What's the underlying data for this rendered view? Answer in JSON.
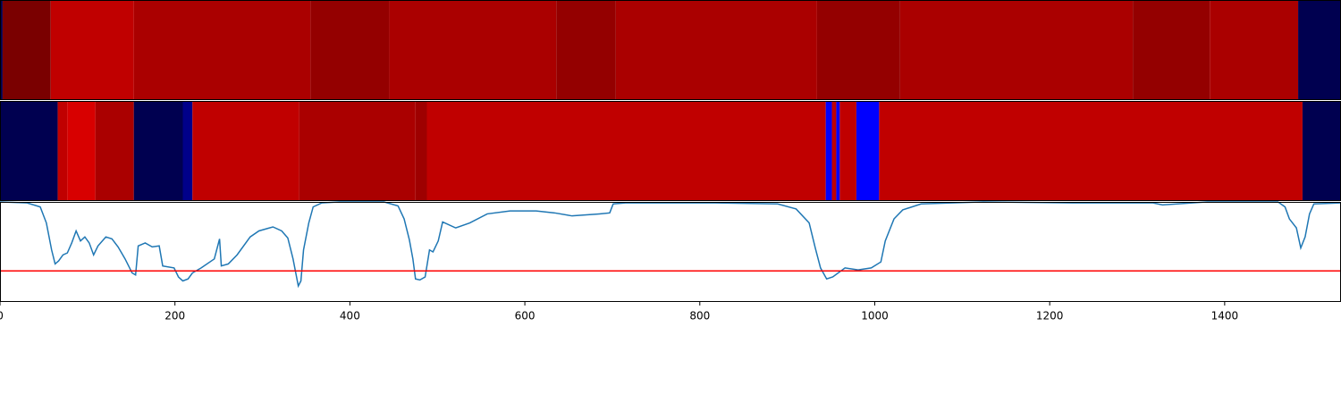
{
  "chart_data": {
    "type": "line",
    "xlim": [
      0,
      1533
    ],
    "ylim": [
      0,
      1
    ],
    "xticks": [
      0,
      200,
      400,
      600,
      800,
      1000,
      1200,
      1400
    ],
    "strips": [
      {
        "segments": [
          {
            "start": 0,
            "end": 3,
            "color": "#000050"
          },
          {
            "start": 3,
            "end": 58,
            "color": "#7a0000"
          },
          {
            "start": 58,
            "end": 153,
            "color": "#c00000"
          },
          {
            "start": 153,
            "end": 355,
            "color": "#aa0000"
          },
          {
            "start": 355,
            "end": 445,
            "color": "#940000"
          },
          {
            "start": 445,
            "end": 636,
            "color": "#aa0000"
          },
          {
            "start": 636,
            "end": 704,
            "color": "#940000"
          },
          {
            "start": 704,
            "end": 934,
            "color": "#aa0000"
          },
          {
            "start": 934,
            "end": 1029,
            "color": "#940000"
          },
          {
            "start": 1029,
            "end": 1295,
            "color": "#aa0000"
          },
          {
            "start": 1295,
            "end": 1383,
            "color": "#940000"
          },
          {
            "start": 1383,
            "end": 1484,
            "color": "#aa0000"
          },
          {
            "start": 1484,
            "end": 1533,
            "color": "#000050"
          }
        ]
      },
      {
        "segments": [
          {
            "start": 0,
            "end": 66,
            "color": "#000050"
          },
          {
            "start": 66,
            "end": 77,
            "color": "#c00000"
          },
          {
            "start": 77,
            "end": 109,
            "color": "#d80000"
          },
          {
            "start": 109,
            "end": 153,
            "color": "#aa0000"
          },
          {
            "start": 153,
            "end": 209,
            "color": "#000050"
          },
          {
            "start": 209,
            "end": 220,
            "color": "#00008a"
          },
          {
            "start": 220,
            "end": 342,
            "color": "#c00000"
          },
          {
            "start": 342,
            "end": 475,
            "color": "#aa0000"
          },
          {
            "start": 475,
            "end": 488,
            "color": "#9e0000"
          },
          {
            "start": 488,
            "end": 944,
            "color": "#c00000"
          },
          {
            "start": 944,
            "end": 951,
            "color": "#0000ff"
          },
          {
            "start": 951,
            "end": 956,
            "color": "#c00000"
          },
          {
            "start": 956,
            "end": 960,
            "color": "#0000ff"
          },
          {
            "start": 960,
            "end": 979,
            "color": "#c00000"
          },
          {
            "start": 979,
            "end": 1005,
            "color": "#0000ff"
          },
          {
            "start": 1005,
            "end": 1489,
            "color": "#c00000"
          },
          {
            "start": 1489,
            "end": 1533,
            "color": "#000050"
          }
        ]
      }
    ],
    "x": [
      0,
      31,
      46,
      53,
      59,
      63,
      67,
      72,
      77,
      82,
      87,
      92,
      97,
      102,
      107,
      112,
      121,
      128,
      135,
      143,
      151,
      155,
      158,
      166,
      174,
      182,
      186,
      199,
      204,
      209,
      215,
      220,
      230,
      245,
      251,
      253,
      261,
      271,
      286,
      296,
      312,
      322,
      329,
      335,
      339,
      341,
      344,
      347,
      353,
      358,
      368,
      388,
      439,
      455,
      462,
      468,
      472,
      475,
      480,
      486,
      491,
      495,
      501,
      506,
      521,
      537,
      557,
      583,
      613,
      634,
      654,
      685,
      697,
      701,
      715,
      818,
      889,
      910,
      925,
      932,
      938,
      945,
      952,
      966,
      981,
      996,
      1007,
      1012,
      1022,
      1032,
      1053,
      1124,
      1226,
      1318,
      1329,
      1380,
      1461,
      1469,
      1474,
      1482,
      1487,
      1492,
      1497,
      1502,
      1533
    ],
    "series": [
      {
        "color": "#1f77b4",
        "values": [
          1.0,
          0.99,
          0.95,
          0.79,
          0.52,
          0.38,
          0.41,
          0.47,
          0.49,
          0.59,
          0.71,
          0.61,
          0.65,
          0.59,
          0.47,
          0.56,
          0.65,
          0.63,
          0.55,
          0.43,
          0.29,
          0.27,
          0.56,
          0.59,
          0.55,
          0.56,
          0.36,
          0.34,
          0.25,
          0.21,
          0.23,
          0.29,
          0.34,
          0.43,
          0.63,
          0.36,
          0.38,
          0.47,
          0.65,
          0.71,
          0.75,
          0.71,
          0.64,
          0.43,
          0.25,
          0.16,
          0.21,
          0.52,
          0.79,
          0.95,
          0.99,
          1.0,
          1.0,
          0.96,
          0.83,
          0.62,
          0.43,
          0.23,
          0.22,
          0.25,
          0.52,
          0.5,
          0.61,
          0.8,
          0.74,
          0.79,
          0.88,
          0.91,
          0.91,
          0.89,
          0.86,
          0.88,
          0.89,
          0.98,
          0.99,
          0.99,
          0.98,
          0.93,
          0.79,
          0.54,
          0.34,
          0.23,
          0.25,
          0.34,
          0.32,
          0.34,
          0.4,
          0.61,
          0.83,
          0.92,
          0.98,
          1.0,
          0.99,
          0.99,
          0.97,
          1.0,
          1.0,
          0.95,
          0.83,
          0.74,
          0.54,
          0.65,
          0.88,
          0.98,
          0.99
        ]
      }
    ],
    "hline": {
      "value": 0.31,
      "color": "#ff0000"
    }
  }
}
